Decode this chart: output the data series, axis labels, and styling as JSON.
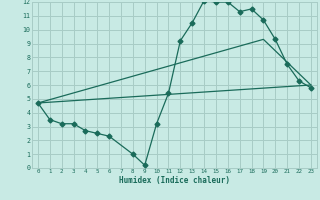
{
  "xlabel": "Humidex (Indice chaleur)",
  "xlim": [
    -0.5,
    23.5
  ],
  "ylim": [
    0,
    12
  ],
  "xticks": [
    0,
    1,
    2,
    3,
    4,
    5,
    6,
    7,
    8,
    9,
    10,
    11,
    12,
    13,
    14,
    15,
    16,
    17,
    18,
    19,
    20,
    21,
    22,
    23
  ],
  "yticks": [
    0,
    1,
    2,
    3,
    4,
    5,
    6,
    7,
    8,
    9,
    10,
    11,
    12
  ],
  "bg_color": "#c8eae4",
  "grid_color": "#a8ccc6",
  "line_color": "#1a6b5a",
  "line1_x": [
    0,
    1,
    2,
    3,
    4,
    5,
    6,
    8,
    9,
    10,
    11,
    12,
    13,
    14,
    15,
    16,
    17,
    18,
    19,
    20,
    21,
    22,
    23
  ],
  "line1_y": [
    4.7,
    3.5,
    3.2,
    3.2,
    2.7,
    2.5,
    2.3,
    1.0,
    0.2,
    3.2,
    5.4,
    9.2,
    10.5,
    12.1,
    12.0,
    12.0,
    11.3,
    11.5,
    10.7,
    9.3,
    7.5,
    6.3,
    5.8
  ],
  "line2_x": [
    0,
    23
  ],
  "line2_y": [
    4.7,
    6.0
  ],
  "line3_x": [
    0,
    19,
    23
  ],
  "line3_y": [
    4.7,
    9.3,
    6.0
  ]
}
